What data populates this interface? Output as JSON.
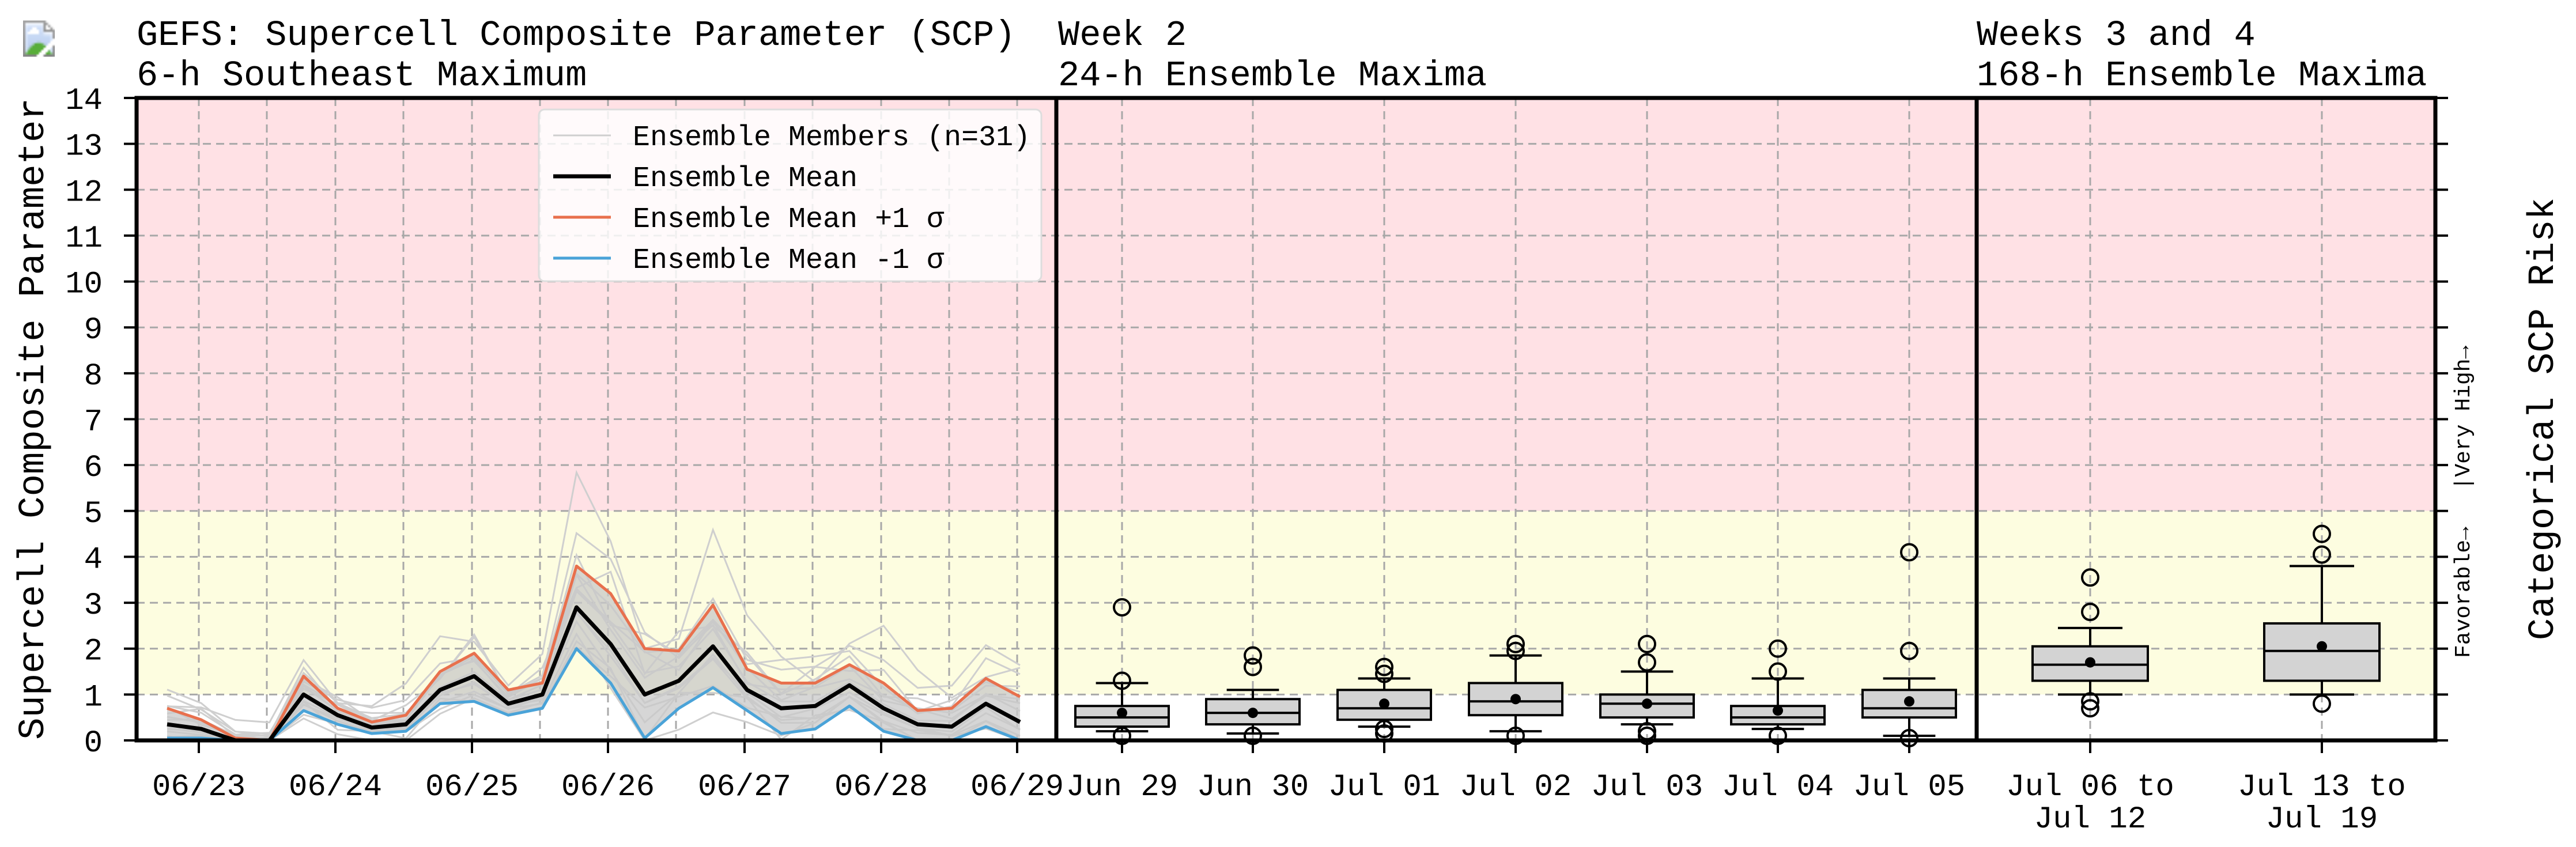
{
  "panels": {
    "p1": {
      "title_line1": "GEFS: Supercell Composite Parameter (SCP)",
      "title_line2": "6-h Southeast Maximum"
    },
    "p2": {
      "title_line1": "Week 2",
      "title_line2": "24-h Ensemble Maxima"
    },
    "p3": {
      "title_line1": "Weeks 3 and 4",
      "title_line2": "168-h Ensemble Maxima"
    }
  },
  "y_axis_label": "Supercell Composite Parameter",
  "right_axis_label": "Categorical SCP Risk",
  "risk_labels": {
    "favorable": "Favorable→",
    "very_high": "|Very High→"
  },
  "legend": {
    "members": "Ensemble Members (n=31)",
    "mean": "Ensemble Mean",
    "plus": "Ensemble Mean +1 σ",
    "minus": "Ensemble Mean -1 σ"
  },
  "colors": {
    "mean": "#000000",
    "plus": "#e8704d",
    "minus": "#4aa3d8",
    "members": "#cfcfcf",
    "spread": "#c8c8c8",
    "very_high_bg": "#ffe1e5",
    "favorable_bg": "#fdfde0",
    "box_fill": "#d3d3d3"
  },
  "chart_data": [
    {
      "type": "line",
      "ylim": [
        0,
        14
      ],
      "yticks": [
        0,
        1,
        2,
        3,
        4,
        5,
        6,
        7,
        8,
        9,
        10,
        11,
        12,
        13,
        14
      ],
      "grid": true,
      "legend_position": "top-right",
      "x_tick_labels": [
        "06/23",
        "06/24",
        "06/25",
        "06/26",
        "06/27",
        "06/28",
        "06/29"
      ],
      "series": [
        {
          "name": "Ensemble Mean",
          "values": [
            0.35,
            0.25,
            0.0,
            0.0,
            1.0,
            0.55,
            0.28,
            0.35,
            1.1,
            1.4,
            0.8,
            1.0,
            2.9,
            2.1,
            1.0,
            1.3,
            2.05,
            1.1,
            0.7,
            0.75,
            1.2,
            0.7,
            0.35,
            0.3,
            0.8,
            0.4
          ]
        },
        {
          "name": "Ensemble Mean +1 σ",
          "values": [
            0.7,
            0.45,
            0.05,
            0.0,
            1.4,
            0.7,
            0.4,
            0.55,
            1.5,
            1.9,
            1.1,
            1.25,
            3.8,
            3.2,
            2.0,
            1.95,
            2.95,
            1.55,
            1.25,
            1.25,
            1.65,
            1.25,
            0.65,
            0.7,
            1.35,
            0.95
          ]
        },
        {
          "name": "Ensemble Mean -1 σ",
          "values": [
            0.05,
            0.05,
            0.0,
            0.0,
            0.65,
            0.35,
            0.15,
            0.2,
            0.8,
            0.85,
            0.55,
            0.7,
            2.0,
            1.25,
            0.05,
            0.7,
            1.15,
            0.65,
            0.15,
            0.25,
            0.75,
            0.2,
            0.0,
            0.0,
            0.3,
            0.0
          ]
        }
      ]
    },
    {
      "type": "box",
      "categories": [
        "Jun 29",
        "Jun 30",
        "Jul 01",
        "Jul 02",
        "Jul 03",
        "Jul 04",
        "Jul 05"
      ],
      "ylim": [
        0,
        14
      ],
      "boxes": [
        {
          "q1": 0.3,
          "median": 0.5,
          "q3": 0.75,
          "whislo": 0.2,
          "whishi": 1.25,
          "mean": 0.6,
          "fliers": [
            2.9,
            1.3,
            0.1
          ]
        },
        {
          "q1": 0.35,
          "median": 0.6,
          "q3": 0.9,
          "whislo": 0.15,
          "whishi": 1.1,
          "mean": 0.6,
          "fliers": [
            1.85,
            1.6,
            0.1
          ]
        },
        {
          "q1": 0.45,
          "median": 0.7,
          "q3": 1.1,
          "whislo": 0.3,
          "whishi": 1.35,
          "mean": 0.8,
          "fliers": [
            1.6,
            1.45,
            0.25,
            0.15
          ]
        },
        {
          "q1": 0.55,
          "median": 0.85,
          "q3": 1.25,
          "whislo": 0.2,
          "whishi": 1.85,
          "mean": 0.9,
          "fliers": [
            2.1,
            1.95,
            0.1
          ]
        },
        {
          "q1": 0.5,
          "median": 0.8,
          "q3": 1.0,
          "whislo": 0.35,
          "whishi": 1.5,
          "mean": 0.8,
          "fliers": [
            2.1,
            1.7,
            0.2,
            0.1
          ]
        },
        {
          "q1": 0.35,
          "median": 0.5,
          "q3": 0.75,
          "whislo": 0.25,
          "whishi": 1.35,
          "mean": 0.65,
          "fliers": [
            2.0,
            1.5,
            0.1
          ]
        },
        {
          "q1": 0.5,
          "median": 0.7,
          "q3": 1.1,
          "whislo": 0.1,
          "whishi": 1.35,
          "mean": 0.85,
          "fliers": [
            4.1,
            1.95,
            0.05
          ]
        }
      ]
    },
    {
      "type": "box",
      "categories": [
        "Jul 06 to\nJul 12",
        "Jul 13 to\nJul 19"
      ],
      "ylim": [
        0,
        14
      ],
      "boxes": [
        {
          "q1": 1.3,
          "median": 1.65,
          "q3": 2.05,
          "whislo": 1.0,
          "whishi": 2.45,
          "mean": 1.7,
          "fliers": [
            3.55,
            2.8,
            0.85,
            0.7
          ]
        },
        {
          "q1": 1.3,
          "median": 1.95,
          "q3": 2.55,
          "whislo": 1.0,
          "whishi": 3.8,
          "mean": 2.05,
          "fliers": [
            4.5,
            4.05,
            0.8
          ]
        }
      ]
    }
  ]
}
